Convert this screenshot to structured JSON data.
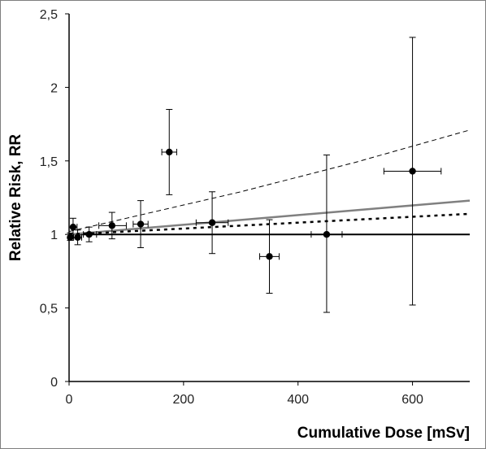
{
  "chart_data": {
    "type": "scatter",
    "xlabel": "Cumulative Dose [mSv]",
    "ylabel": "Relative Risk, RR",
    "xlim": [
      0,
      700
    ],
    "ylim": [
      0,
      2.5
    ],
    "x_ticks": [
      "0",
      "200",
      "400",
      "600"
    ],
    "y_ticks": [
      "0",
      "0,5",
      "1",
      "1,5",
      "2",
      "2,5"
    ],
    "grid": false,
    "legend": "none",
    "points": [
      {
        "x": 2,
        "y": 0.98,
        "y_low": 0.96,
        "y_high": 1.01,
        "x_low": 0,
        "x_high": 5
      },
      {
        "x": 7,
        "y": 1.05,
        "y_low": 0.98,
        "y_high": 1.11,
        "x_low": 0,
        "x_high": 14
      },
      {
        "x": 15,
        "y": 0.98,
        "y_low": 0.93,
        "y_high": 1.03,
        "x_low": 8,
        "x_high": 22
      },
      {
        "x": 35,
        "y": 1.0,
        "y_low": 0.95,
        "y_high": 1.05,
        "x_low": 25,
        "x_high": 48
      },
      {
        "x": 75,
        "y": 1.06,
        "y_low": 0.97,
        "y_high": 1.15,
        "x_low": 52,
        "x_high": 100
      },
      {
        "x": 125,
        "y": 1.07,
        "y_low": 0.91,
        "y_high": 1.23,
        "x_low": 112,
        "x_high": 138
      },
      {
        "x": 175,
        "y": 1.56,
        "y_low": 1.27,
        "y_high": 1.85,
        "x_low": 162,
        "x_high": 188
      },
      {
        "x": 250,
        "y": 1.08,
        "y_low": 0.87,
        "y_high": 1.29,
        "x_low": 222,
        "x_high": 278
      },
      {
        "x": 350,
        "y": 0.85,
        "y_low": 0.6,
        "y_high": 1.1,
        "x_low": 333,
        "x_high": 367
      },
      {
        "x": 450,
        "y": 1.0,
        "y_low": 0.47,
        "y_high": 1.54,
        "x_low": 423,
        "x_high": 477
      },
      {
        "x": 600,
        "y": 1.43,
        "y_low": 0.52,
        "y_high": 2.34,
        "x_low": 550,
        "x_high": 650
      }
    ],
    "lines": [
      {
        "style": "solid-black",
        "x": [
          0,
          700
        ],
        "y": [
          1.0,
          1.0
        ]
      },
      {
        "style": "solid-gray",
        "x": [
          0,
          700
        ],
        "y": [
          1.0,
          1.23
        ]
      },
      {
        "style": "dashed-thin",
        "x": [
          0,
          100,
          200,
          300,
          400,
          500,
          600,
          700
        ],
        "y": [
          1.02,
          1.11,
          1.2,
          1.29,
          1.39,
          1.49,
          1.6,
          1.71
        ]
      },
      {
        "style": "dotted-heavy",
        "x": [
          0,
          100,
          200,
          300,
          400,
          500,
          600,
          700
        ],
        "y": [
          1.0,
          1.02,
          1.04,
          1.06,
          1.08,
          1.1,
          1.12,
          1.14
        ]
      }
    ],
    "colors": {
      "points": "#000000",
      "reference": "#000000",
      "fit": "#808080"
    }
  }
}
